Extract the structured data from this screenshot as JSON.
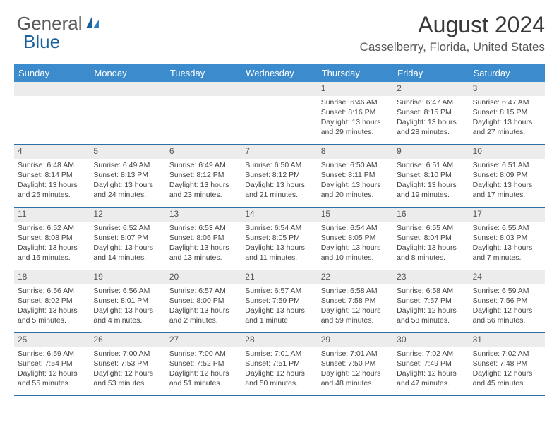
{
  "logo": {
    "general": "General",
    "blue": "Blue"
  },
  "title": "August 2024",
  "location": "Casselberry, Florida, United States",
  "colors": {
    "header_bg": "#3b8bcd",
    "header_text": "#ffffff",
    "daynum_bg": "#ececec",
    "border": "#2f6fa3",
    "text": "#333333"
  },
  "day_headers": [
    "Sunday",
    "Monday",
    "Tuesday",
    "Wednesday",
    "Thursday",
    "Friday",
    "Saturday"
  ],
  "weeks": [
    [
      {
        "num": "",
        "sunrise": "",
        "sunset": "",
        "daylight1": "",
        "daylight2": ""
      },
      {
        "num": "",
        "sunrise": "",
        "sunset": "",
        "daylight1": "",
        "daylight2": ""
      },
      {
        "num": "",
        "sunrise": "",
        "sunset": "",
        "daylight1": "",
        "daylight2": ""
      },
      {
        "num": "",
        "sunrise": "",
        "sunset": "",
        "daylight1": "",
        "daylight2": ""
      },
      {
        "num": "1",
        "sunrise": "Sunrise: 6:46 AM",
        "sunset": "Sunset: 8:16 PM",
        "daylight1": "Daylight: 13 hours",
        "daylight2": "and 29 minutes."
      },
      {
        "num": "2",
        "sunrise": "Sunrise: 6:47 AM",
        "sunset": "Sunset: 8:15 PM",
        "daylight1": "Daylight: 13 hours",
        "daylight2": "and 28 minutes."
      },
      {
        "num": "3",
        "sunrise": "Sunrise: 6:47 AM",
        "sunset": "Sunset: 8:15 PM",
        "daylight1": "Daylight: 13 hours",
        "daylight2": "and 27 minutes."
      }
    ],
    [
      {
        "num": "4",
        "sunrise": "Sunrise: 6:48 AM",
        "sunset": "Sunset: 8:14 PM",
        "daylight1": "Daylight: 13 hours",
        "daylight2": "and 25 minutes."
      },
      {
        "num": "5",
        "sunrise": "Sunrise: 6:49 AM",
        "sunset": "Sunset: 8:13 PM",
        "daylight1": "Daylight: 13 hours",
        "daylight2": "and 24 minutes."
      },
      {
        "num": "6",
        "sunrise": "Sunrise: 6:49 AM",
        "sunset": "Sunset: 8:12 PM",
        "daylight1": "Daylight: 13 hours",
        "daylight2": "and 23 minutes."
      },
      {
        "num": "7",
        "sunrise": "Sunrise: 6:50 AM",
        "sunset": "Sunset: 8:12 PM",
        "daylight1": "Daylight: 13 hours",
        "daylight2": "and 21 minutes."
      },
      {
        "num": "8",
        "sunrise": "Sunrise: 6:50 AM",
        "sunset": "Sunset: 8:11 PM",
        "daylight1": "Daylight: 13 hours",
        "daylight2": "and 20 minutes."
      },
      {
        "num": "9",
        "sunrise": "Sunrise: 6:51 AM",
        "sunset": "Sunset: 8:10 PM",
        "daylight1": "Daylight: 13 hours",
        "daylight2": "and 19 minutes."
      },
      {
        "num": "10",
        "sunrise": "Sunrise: 6:51 AM",
        "sunset": "Sunset: 8:09 PM",
        "daylight1": "Daylight: 13 hours",
        "daylight2": "and 17 minutes."
      }
    ],
    [
      {
        "num": "11",
        "sunrise": "Sunrise: 6:52 AM",
        "sunset": "Sunset: 8:08 PM",
        "daylight1": "Daylight: 13 hours",
        "daylight2": "and 16 minutes."
      },
      {
        "num": "12",
        "sunrise": "Sunrise: 6:52 AM",
        "sunset": "Sunset: 8:07 PM",
        "daylight1": "Daylight: 13 hours",
        "daylight2": "and 14 minutes."
      },
      {
        "num": "13",
        "sunrise": "Sunrise: 6:53 AM",
        "sunset": "Sunset: 8:06 PM",
        "daylight1": "Daylight: 13 hours",
        "daylight2": "and 13 minutes."
      },
      {
        "num": "14",
        "sunrise": "Sunrise: 6:54 AM",
        "sunset": "Sunset: 8:05 PM",
        "daylight1": "Daylight: 13 hours",
        "daylight2": "and 11 minutes."
      },
      {
        "num": "15",
        "sunrise": "Sunrise: 6:54 AM",
        "sunset": "Sunset: 8:05 PM",
        "daylight1": "Daylight: 13 hours",
        "daylight2": "and 10 minutes."
      },
      {
        "num": "16",
        "sunrise": "Sunrise: 6:55 AM",
        "sunset": "Sunset: 8:04 PM",
        "daylight1": "Daylight: 13 hours",
        "daylight2": "and 8 minutes."
      },
      {
        "num": "17",
        "sunrise": "Sunrise: 6:55 AM",
        "sunset": "Sunset: 8:03 PM",
        "daylight1": "Daylight: 13 hours",
        "daylight2": "and 7 minutes."
      }
    ],
    [
      {
        "num": "18",
        "sunrise": "Sunrise: 6:56 AM",
        "sunset": "Sunset: 8:02 PM",
        "daylight1": "Daylight: 13 hours",
        "daylight2": "and 5 minutes."
      },
      {
        "num": "19",
        "sunrise": "Sunrise: 6:56 AM",
        "sunset": "Sunset: 8:01 PM",
        "daylight1": "Daylight: 13 hours",
        "daylight2": "and 4 minutes."
      },
      {
        "num": "20",
        "sunrise": "Sunrise: 6:57 AM",
        "sunset": "Sunset: 8:00 PM",
        "daylight1": "Daylight: 13 hours",
        "daylight2": "and 2 minutes."
      },
      {
        "num": "21",
        "sunrise": "Sunrise: 6:57 AM",
        "sunset": "Sunset: 7:59 PM",
        "daylight1": "Daylight: 13 hours",
        "daylight2": "and 1 minute."
      },
      {
        "num": "22",
        "sunrise": "Sunrise: 6:58 AM",
        "sunset": "Sunset: 7:58 PM",
        "daylight1": "Daylight: 12 hours",
        "daylight2": "and 59 minutes."
      },
      {
        "num": "23",
        "sunrise": "Sunrise: 6:58 AM",
        "sunset": "Sunset: 7:57 PM",
        "daylight1": "Daylight: 12 hours",
        "daylight2": "and 58 minutes."
      },
      {
        "num": "24",
        "sunrise": "Sunrise: 6:59 AM",
        "sunset": "Sunset: 7:56 PM",
        "daylight1": "Daylight: 12 hours",
        "daylight2": "and 56 minutes."
      }
    ],
    [
      {
        "num": "25",
        "sunrise": "Sunrise: 6:59 AM",
        "sunset": "Sunset: 7:54 PM",
        "daylight1": "Daylight: 12 hours",
        "daylight2": "and 55 minutes."
      },
      {
        "num": "26",
        "sunrise": "Sunrise: 7:00 AM",
        "sunset": "Sunset: 7:53 PM",
        "daylight1": "Daylight: 12 hours",
        "daylight2": "and 53 minutes."
      },
      {
        "num": "27",
        "sunrise": "Sunrise: 7:00 AM",
        "sunset": "Sunset: 7:52 PM",
        "daylight1": "Daylight: 12 hours",
        "daylight2": "and 51 minutes."
      },
      {
        "num": "28",
        "sunrise": "Sunrise: 7:01 AM",
        "sunset": "Sunset: 7:51 PM",
        "daylight1": "Daylight: 12 hours",
        "daylight2": "and 50 minutes."
      },
      {
        "num": "29",
        "sunrise": "Sunrise: 7:01 AM",
        "sunset": "Sunset: 7:50 PM",
        "daylight1": "Daylight: 12 hours",
        "daylight2": "and 48 minutes."
      },
      {
        "num": "30",
        "sunrise": "Sunrise: 7:02 AM",
        "sunset": "Sunset: 7:49 PM",
        "daylight1": "Daylight: 12 hours",
        "daylight2": "and 47 minutes."
      },
      {
        "num": "31",
        "sunrise": "Sunrise: 7:02 AM",
        "sunset": "Sunset: 7:48 PM",
        "daylight1": "Daylight: 12 hours",
        "daylight2": "and 45 minutes."
      }
    ]
  ]
}
